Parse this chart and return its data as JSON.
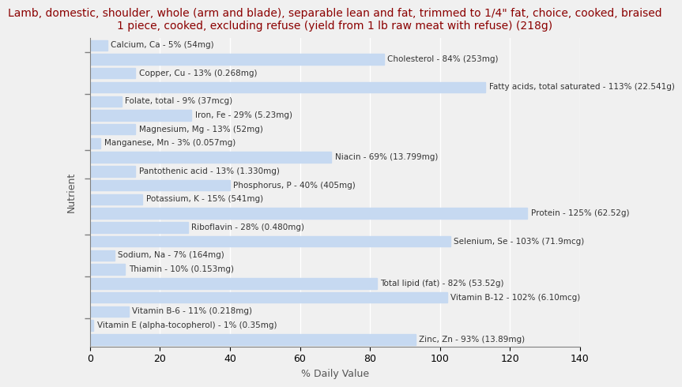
{
  "title": "Lamb, domestic, shoulder, whole (arm and blade), separable lean and fat, trimmed to 1/4\" fat, choice, cooked, braised\n1 piece, cooked, excluding refuse (yield from 1 lb raw meat with refuse) (218g)",
  "xlabel": "% Daily Value",
  "ylabel": "Nutrient",
  "xlim": [
    0,
    140
  ],
  "xticks": [
    0,
    20,
    40,
    60,
    80,
    100,
    120,
    140
  ],
  "bar_color": "#c6d9f1",
  "nutrients": [
    {
      "label": "Calcium, Ca - 5% (54mg)",
      "value": 5
    },
    {
      "label": "Cholesterol - 84% (253mg)",
      "value": 84
    },
    {
      "label": "Copper, Cu - 13% (0.268mg)",
      "value": 13
    },
    {
      "label": "Fatty acids, total saturated - 113% (22.541g)",
      "value": 113
    },
    {
      "label": "Folate, total - 9% (37mcg)",
      "value": 9
    },
    {
      "label": "Iron, Fe - 29% (5.23mg)",
      "value": 29
    },
    {
      "label": "Magnesium, Mg - 13% (52mg)",
      "value": 13
    },
    {
      "label": "Manganese, Mn - 3% (0.057mg)",
      "value": 3
    },
    {
      "label": "Niacin - 69% (13.799mg)",
      "value": 69
    },
    {
      "label": "Pantothenic acid - 13% (1.330mg)",
      "value": 13
    },
    {
      "label": "Phosphorus, P - 40% (405mg)",
      "value": 40
    },
    {
      "label": "Potassium, K - 15% (541mg)",
      "value": 15
    },
    {
      "label": "Protein - 125% (62.52g)",
      "value": 125
    },
    {
      "label": "Riboflavin - 28% (0.480mg)",
      "value": 28
    },
    {
      "label": "Selenium, Se - 103% (71.9mcg)",
      "value": 103
    },
    {
      "label": "Sodium, Na - 7% (164mg)",
      "value": 7
    },
    {
      "label": "Thiamin - 10% (0.153mg)",
      "value": 10
    },
    {
      "label": "Total lipid (fat) - 82% (53.52g)",
      "value": 82
    },
    {
      "label": "Vitamin B-12 - 102% (6.10mcg)",
      "value": 102
    },
    {
      "label": "Vitamin B-6 - 11% (0.218mg)",
      "value": 11
    },
    {
      "label": "Vitamin E (alpha-tocopherol) - 1% (0.35mg)",
      "value": 1
    },
    {
      "label": "Zinc, Zn - 93% (13.89mg)",
      "value": 93
    }
  ],
  "title_color": "#8b0000",
  "label_color": "#333333",
  "axis_label_color": "#555555",
  "background_color": "#f0f0f0",
  "plot_background_color": "#f0f0f0",
  "title_fontsize": 10,
  "label_fontsize": 7.5,
  "tick_fontsize": 9
}
